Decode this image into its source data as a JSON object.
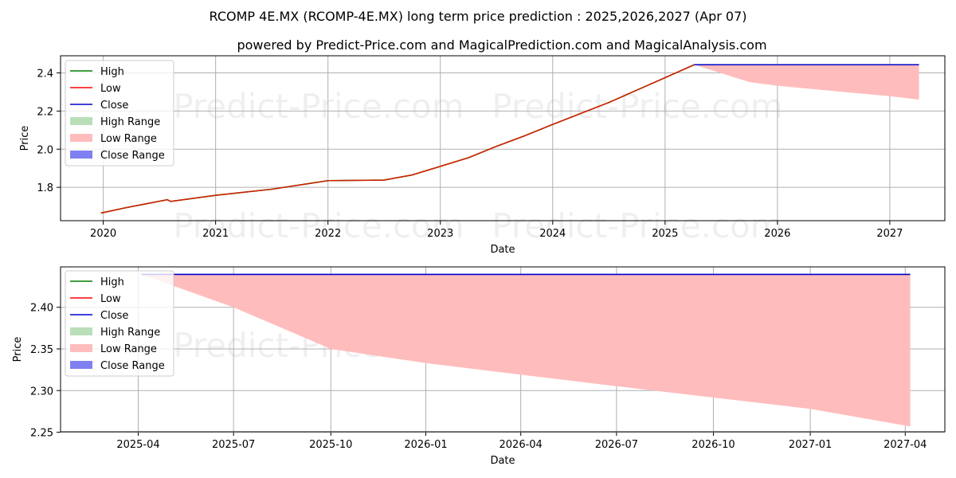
{
  "title": "RCOMP 4E.MX (RCOMP-4E.MX) long term price prediction : 2025,2026,2027 (Apr 07)",
  "subtitle": "powered by Predict-Price.com and MagicalPrediction.com and MagicalAnalysis.com",
  "watermark": "Predict-Price.com",
  "colors": {
    "high": "#008000",
    "low": "#ff0000",
    "close": "#0000cd",
    "high_range": "#b9dfb9",
    "low_range": "#ffbcbc",
    "close_range": "#8080f0",
    "grid": "#b0b0b0"
  },
  "legend": {
    "placement": "upper-left",
    "items": [
      {
        "label": "High",
        "kind": "line",
        "color_key": "high"
      },
      {
        "label": "Low",
        "kind": "line",
        "color_key": "low"
      },
      {
        "label": "Close",
        "kind": "line",
        "color_key": "close"
      },
      {
        "label": "High Range",
        "kind": "patch",
        "color_key": "high_range"
      },
      {
        "label": "Low Range",
        "kind": "patch",
        "color_key": "low_range"
      },
      {
        "label": "Close Range",
        "kind": "patch",
        "color_key": "close_range"
      }
    ]
  },
  "chart_data": [
    {
      "type": "line",
      "xlabel": "Date",
      "ylabel": "Price",
      "grid": true,
      "xlim": [
        2019.62,
        2027.49
      ],
      "ylim": [
        1.625,
        2.49
      ],
      "xticks": [
        {
          "v": 2020,
          "label": "2020"
        },
        {
          "v": 2021,
          "label": "2021"
        },
        {
          "v": 2022,
          "label": "2022"
        },
        {
          "v": 2023,
          "label": "2023"
        },
        {
          "v": 2024,
          "label": "2024"
        },
        {
          "v": 2025,
          "label": "2025"
        },
        {
          "v": 2026,
          "label": "2026"
        },
        {
          "v": 2027,
          "label": "2027"
        }
      ],
      "yticks": [
        {
          "v": 1.8,
          "label": "1.8"
        },
        {
          "v": 2.0,
          "label": "2.0"
        },
        {
          "v": 2.2,
          "label": "2.2"
        },
        {
          "v": 2.4,
          "label": "2.4"
        }
      ],
      "history": [
        [
          2019.98,
          1.665
        ],
        [
          2020.2,
          1.693
        ],
        [
          2020.35,
          1.71
        ],
        [
          2020.57,
          1.735
        ],
        [
          2020.6,
          1.726
        ],
        [
          2021.0,
          1.758
        ],
        [
          2021.5,
          1.79
        ],
        [
          2022.0,
          1.835
        ],
        [
          2022.5,
          1.838
        ],
        [
          2022.75,
          1.865
        ],
        [
          2023.0,
          1.91
        ],
        [
          2023.25,
          1.955
        ],
        [
          2023.5,
          2.015
        ],
        [
          2023.75,
          2.07
        ],
        [
          2024.0,
          2.13
        ],
        [
          2024.5,
          2.245
        ],
        [
          2024.75,
          2.31
        ],
        [
          2025.0,
          2.375
        ],
        [
          2025.26,
          2.443
        ]
      ],
      "close_forecast": [
        [
          2025.26,
          2.443
        ],
        [
          2027.26,
          2.443
        ]
      ],
      "low_range": [
        [
          2025.26,
          2.443
        ],
        [
          2025.75,
          2.352
        ],
        [
          2026.0,
          2.333
        ],
        [
          2026.5,
          2.305
        ],
        [
          2027.0,
          2.278
        ],
        [
          2027.26,
          2.26
        ]
      ],
      "low_range_top": 2.443
    },
    {
      "type": "line",
      "xlabel": "Date",
      "ylabel": "Price",
      "grid": true,
      "xlim": [
        2025.05,
        2027.35
      ],
      "ylim": [
        2.2505,
        2.4485
      ],
      "xticks": [
        {
          "v": 2025.252,
          "label": "2025-04"
        },
        {
          "v": 2025.5,
          "label": "2025-07"
        },
        {
          "v": 2025.753,
          "label": "2025-10"
        },
        {
          "v": 2026.0,
          "label": "2026-01"
        },
        {
          "v": 2026.247,
          "label": "2026-04"
        },
        {
          "v": 2026.496,
          "label": "2026-07"
        },
        {
          "v": 2026.748,
          "label": "2026-10"
        },
        {
          "v": 2027.0,
          "label": "2027-01"
        },
        {
          "v": 2027.247,
          "label": "2027-04"
        }
      ],
      "yticks": [
        {
          "v": 2.25,
          "label": "2.25"
        },
        {
          "v": 2.3,
          "label": "2.30"
        },
        {
          "v": 2.35,
          "label": "2.35"
        },
        {
          "v": 2.4,
          "label": "2.40"
        }
      ],
      "close_forecast": [
        [
          2025.26,
          2.4395
        ],
        [
          2027.26,
          2.4395
        ]
      ],
      "low_range": [
        [
          2025.26,
          2.4395
        ],
        [
          2025.5,
          2.4
        ],
        [
          2025.753,
          2.35
        ],
        [
          2026.0,
          2.333
        ],
        [
          2026.5,
          2.305
        ],
        [
          2027.0,
          2.278
        ],
        [
          2027.26,
          2.257
        ]
      ],
      "low_range_top": 2.4395
    }
  ]
}
